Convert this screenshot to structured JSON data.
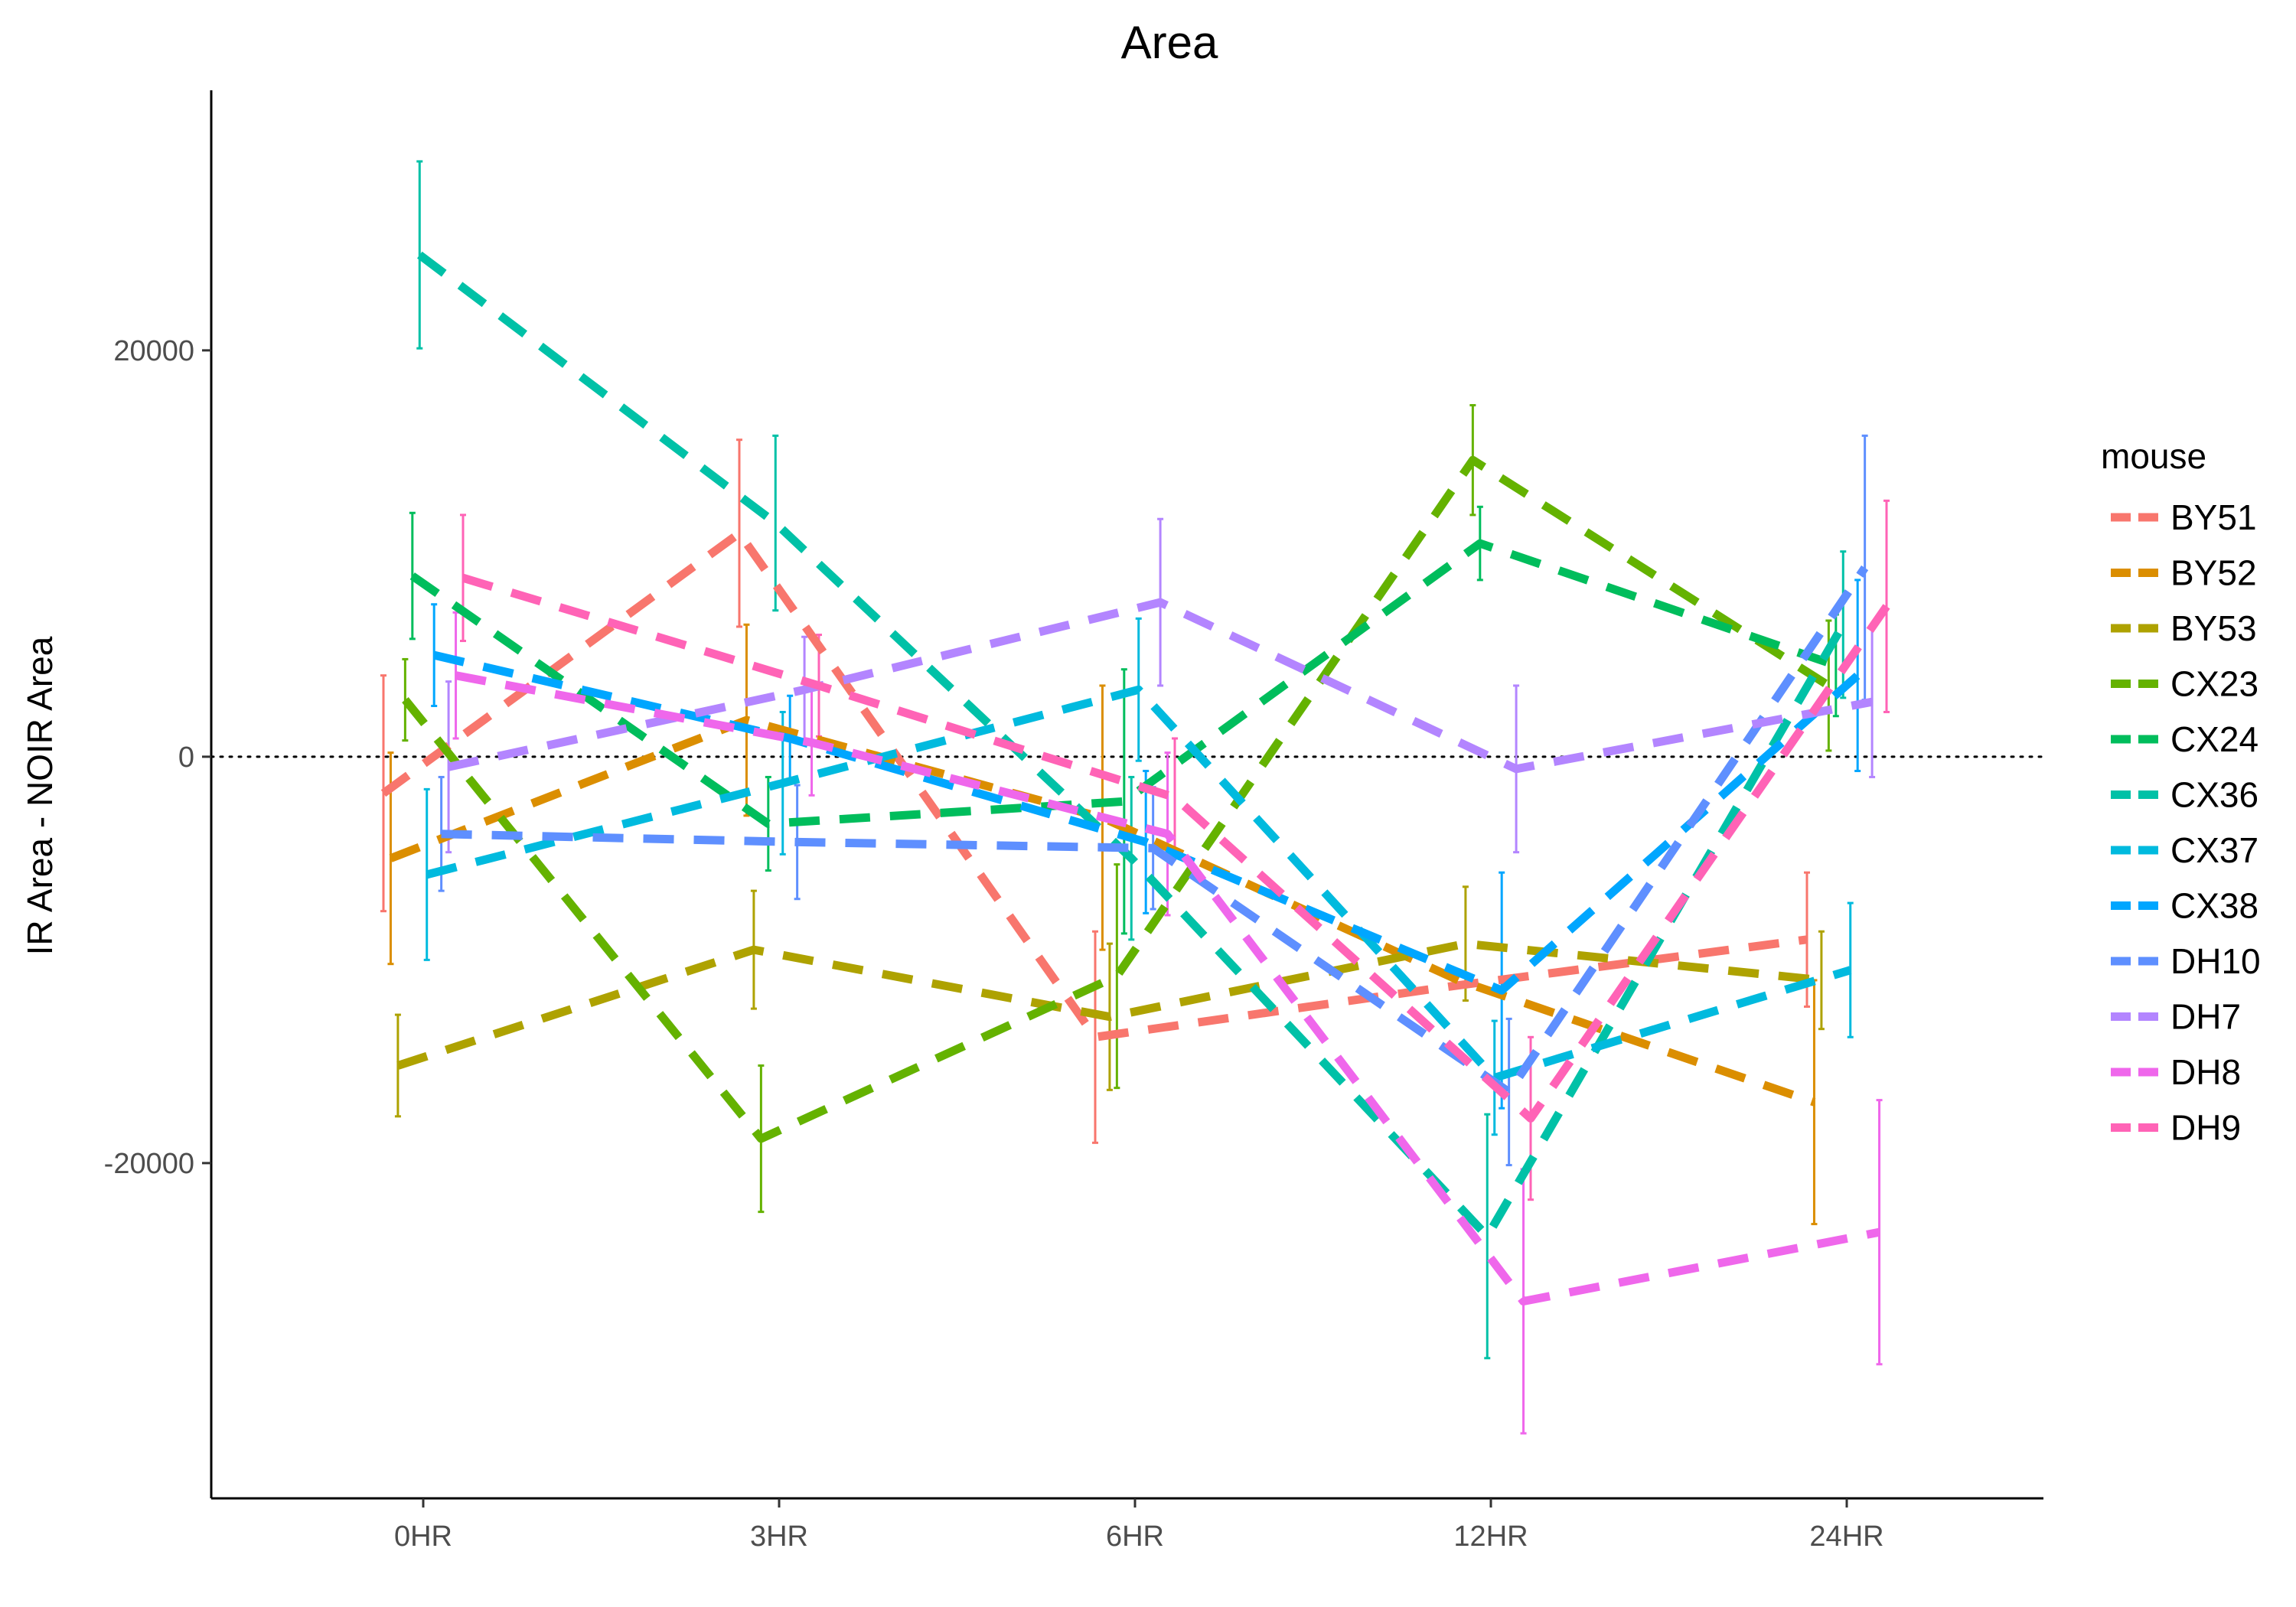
{
  "chart_data": {
    "type": "line",
    "title": "Area",
    "xlabel": "",
    "ylabel": "IR Area - NOIR Area",
    "categories": [
      "0HR",
      "3HR",
      "6HR",
      "12HR",
      "24HR"
    ],
    "y_ticks": [
      -20000,
      0,
      20000
    ],
    "y_tick_labels": [
      "-20000",
      "0",
      "20000"
    ],
    "ylim": [
      -36500,
      32800
    ],
    "reference_line": 0,
    "legend": {
      "title": "mouse",
      "position": "right"
    },
    "series": [
      {
        "name": "BY51",
        "color": "#F8766D",
        "values": [
          -1800,
          11000,
          -13800,
          -11300,
          -9000
        ],
        "errors": [
          5800,
          4600,
          5200,
          null,
          3300
        ]
      },
      {
        "name": "BY52",
        "color": "#DB8E00",
        "values": [
          -5000,
          1800,
          -3000,
          -11000,
          -17000
        ],
        "errors": [
          5200,
          4700,
          6500,
          null,
          6000
        ]
      },
      {
        "name": "BY53",
        "color": "#AEA200",
        "values": [
          -15200,
          -9500,
          -12800,
          -9200,
          -11000
        ],
        "errors": [
          2500,
          2900,
          3600,
          2800,
          2400
        ]
      },
      {
        "name": "CX23",
        "color": "#64B200",
        "values": [
          2800,
          -18800,
          -10800,
          14600,
          3500
        ],
        "errors": [
          2000,
          3600,
          5500,
          2700,
          3200
        ]
      },
      {
        "name": "CX24",
        "color": "#00BD5C",
        "values": [
          8900,
          -3300,
          -2200,
          10500,
          4500
        ],
        "errors": [
          3100,
          2300,
          6500,
          1800,
          2500
        ]
      },
      {
        "name": "CX36",
        "color": "#00C1A7",
        "values": [
          24700,
          11500,
          -5000,
          -23600,
          6500
        ],
        "errors": [
          4600,
          4300,
          4000,
          6000,
          3600
        ]
      },
      {
        "name": "CX37",
        "color": "#00BADE",
        "values": [
          -5800,
          -1300,
          3300,
          -15800,
          -10500
        ],
        "errors": [
          4200,
          3500,
          3500,
          2800,
          3300
        ]
      },
      {
        "name": "CX38",
        "color": "#00A6FF",
        "values": [
          5000,
          900,
          -4200,
          -11500,
          4000
        ],
        "errors": [
          2500,
          2100,
          3500,
          5800,
          4700
        ]
      },
      {
        "name": "DH10",
        "color": "#5E8FFF",
        "values": [
          -3800,
          -4200,
          -4500,
          -16500,
          9300
        ],
        "errors": [
          2800,
          2800,
          3000,
          3600,
          6500
        ]
      },
      {
        "name": "DH7",
        "color": "#B385FF",
        "values": [
          -500,
          3300,
          7600,
          -600,
          2700
        ],
        "errors": [
          4200,
          2600,
          4100,
          4100,
          3700
        ]
      },
      {
        "name": "DH8",
        "color": "#EF67EB",
        "values": [
          4000,
          700,
          -3800,
          -26800,
          -23400
        ],
        "errors": [
          3100,
          2600,
          4000,
          6500,
          6500
        ]
      },
      {
        "name": "DH9",
        "color": "#FF63B6",
        "values": [
          8800,
          3500,
          -2000,
          -17800,
          7400
        ],
        "errors": [
          3100,
          2500,
          2900,
          4000,
          5200
        ]
      }
    ]
  }
}
